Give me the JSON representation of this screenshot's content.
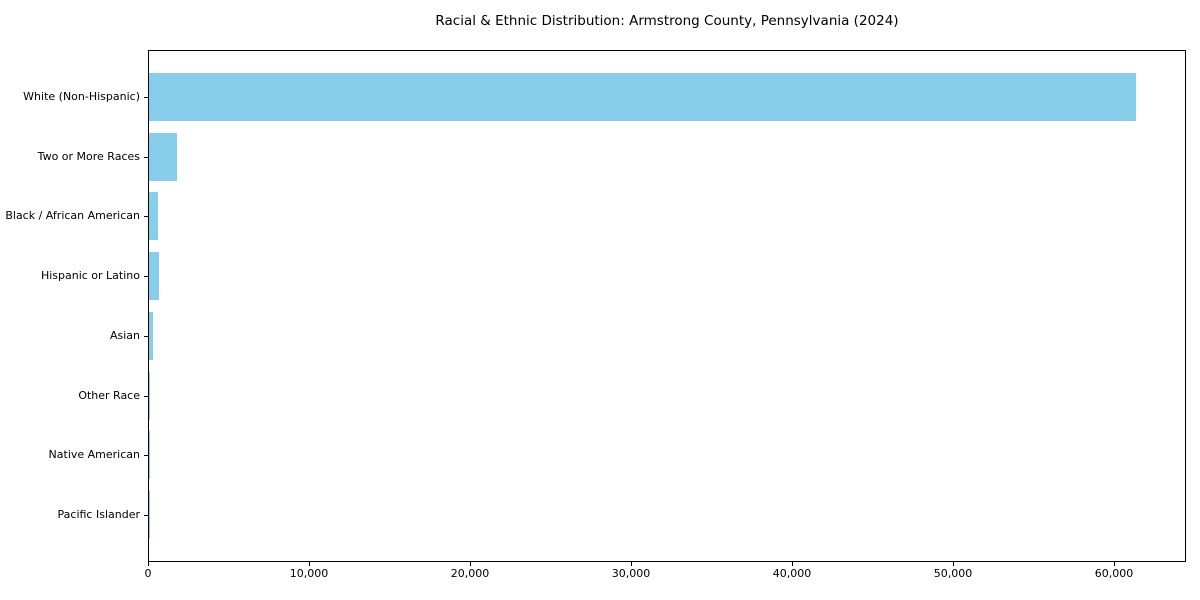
{
  "figure": {
    "background_color": "#ffffff"
  },
  "chart_data": {
    "type": "bar",
    "orientation": "horizontal",
    "title": "Racial & Ethnic Distribution: Armstrong County, Pennsylvania (2024)",
    "xlabel": "",
    "ylabel": "",
    "categories": [
      "White (Non-Hispanic)",
      "Two or More Races",
      "Black / African American",
      "Hispanic or Latino",
      "Asian",
      "Other Race",
      "Native American",
      "Pacific Islander"
    ],
    "values": [
      61300,
      1750,
      570,
      610,
      260,
      60,
      30,
      10
    ],
    "bar_color": "#87ceeb",
    "axis_color": "#000000",
    "text_color": "#000000",
    "xlim": [
      0,
      64450
    ],
    "x_ticks": [
      0,
      10000,
      20000,
      30000,
      40000,
      50000,
      60000
    ],
    "x_tick_labels": [
      "0",
      "10,000",
      "20,000",
      "30,000",
      "40,000",
      "50,000",
      "60,000"
    ],
    "grid": false,
    "legend": null
  }
}
